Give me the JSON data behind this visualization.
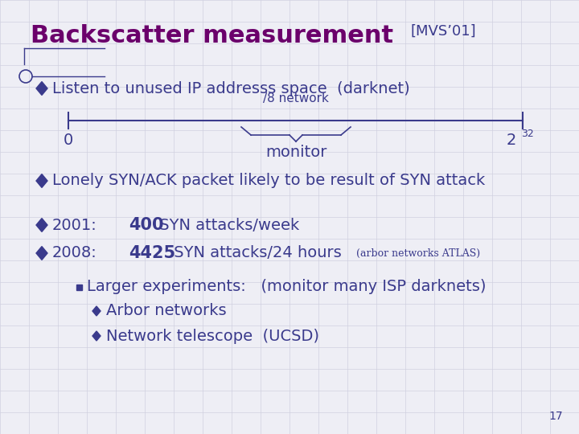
{
  "bg_color": "#eeeef5",
  "title_main": "Backscatter measurement",
  "title_ref": "[MVS’01]",
  "title_color": "#6b006b",
  "ref_color": "#3a3a8c",
  "body_color": "#3a3a8c",
  "title_fontsize": 22,
  "ref_fontsize": 13,
  "body_fontsize": 14,
  "small_fontsize": 9,
  "bullet_color": "#3a3a8c",
  "slide_number": "17",
  "grid_color": "#d0d0e0",
  "line_color": "#3a3a8c"
}
